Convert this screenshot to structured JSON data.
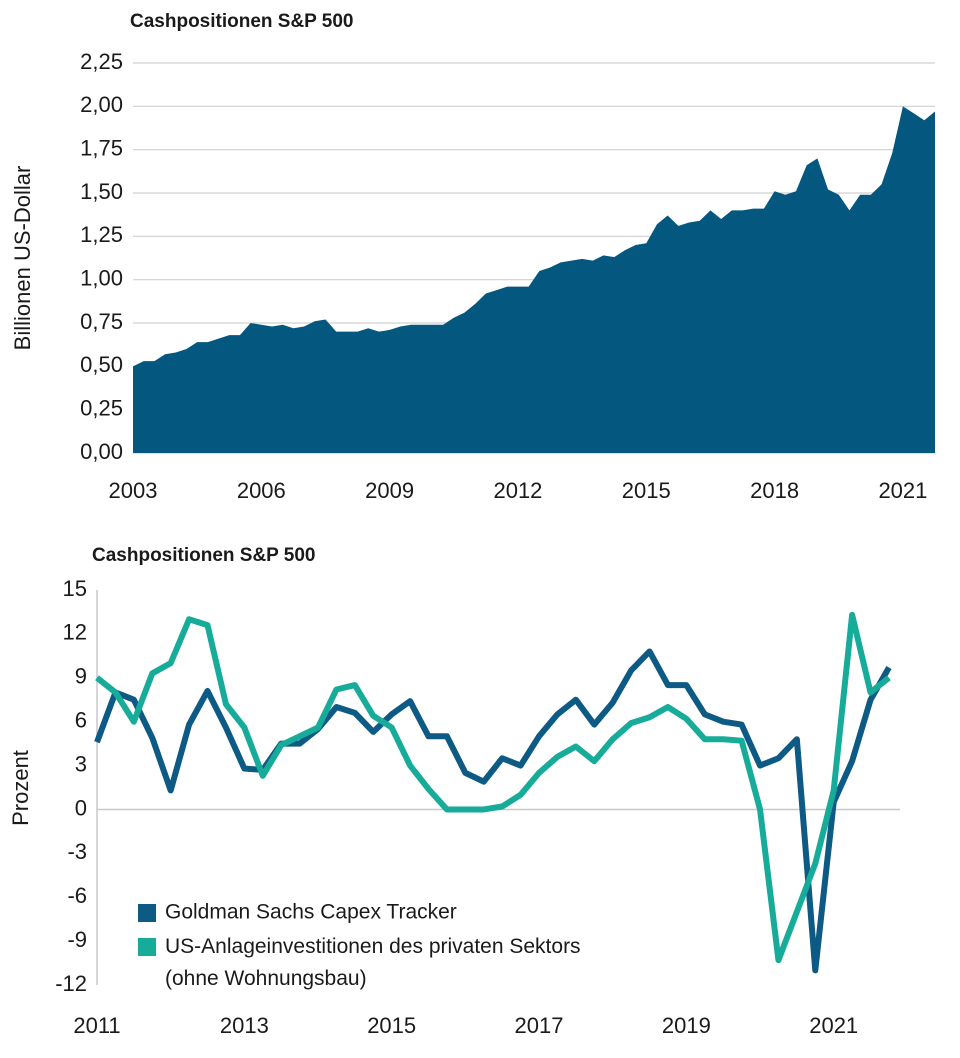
{
  "chart_data": [
    {
      "type": "area",
      "title": "Cashpositionen S&P 500",
      "y_label": "Billionen US-Dollar",
      "color": "#04587f",
      "grid": true,
      "x": [
        2003,
        2003.25,
        2003.5,
        2003.75,
        2004,
        2004.25,
        2004.5,
        2004.75,
        2005,
        2005.25,
        2005.5,
        2005.75,
        2006,
        2006.25,
        2006.5,
        2006.75,
        2007,
        2007.25,
        2007.5,
        2007.75,
        2008,
        2008.25,
        2008.5,
        2008.75,
        2009,
        2009.25,
        2009.5,
        2009.75,
        2010,
        2010.25,
        2010.5,
        2010.75,
        2011,
        2011.25,
        2011.5,
        2011.75,
        2012,
        2012.25,
        2012.5,
        2012.75,
        2013,
        2013.25,
        2013.5,
        2013.75,
        2014,
        2014.25,
        2014.5,
        2014.75,
        2015,
        2015.25,
        2015.5,
        2015.75,
        2016,
        2016.25,
        2016.5,
        2016.75,
        2017,
        2017.25,
        2017.5,
        2017.75,
        2018,
        2018.25,
        2018.5,
        2018.75,
        2019,
        2019.25,
        2019.5,
        2019.75,
        2020,
        2020.25,
        2020.5,
        2020.75,
        2021,
        2021.25,
        2021.5,
        2021.75
      ],
      "values": [
        0.5,
        0.53,
        0.53,
        0.57,
        0.58,
        0.6,
        0.64,
        0.64,
        0.66,
        0.68,
        0.68,
        0.75,
        0.74,
        0.73,
        0.74,
        0.72,
        0.73,
        0.76,
        0.77,
        0.7,
        0.7,
        0.7,
        0.72,
        0.7,
        0.71,
        0.73,
        0.74,
        0.74,
        0.74,
        0.74,
        0.78,
        0.81,
        0.86,
        0.92,
        0.94,
        0.96,
        0.96,
        0.96,
        1.05,
        1.07,
        1.1,
        1.11,
        1.12,
        1.11,
        1.14,
        1.13,
        1.17,
        1.2,
        1.21,
        1.32,
        1.37,
        1.31,
        1.33,
        1.34,
        1.4,
        1.35,
        1.4,
        1.4,
        1.41,
        1.41,
        1.51,
        1.49,
        1.51,
        1.66,
        1.7,
        1.52,
        1.49,
        1.4,
        1.49,
        1.49,
        1.55,
        1.73,
        2.0,
        1.96,
        1.92,
        1.97
      ],
      "xlim": [
        2003,
        2021.75
      ],
      "xticks": [
        2003,
        2006,
        2009,
        2012,
        2015,
        2018,
        2021
      ],
      "ylim": [
        0,
        2.25
      ],
      "yticks": [
        {
          "value": 0,
          "label": "0,00"
        },
        {
          "value": 0.25,
          "label": "0,25"
        },
        {
          "value": 0.5,
          "label": "0,50"
        },
        {
          "value": 0.75,
          "label": "0,75"
        },
        {
          "value": 1,
          "label": "1,00"
        },
        {
          "value": 1.25,
          "label": "1,25"
        },
        {
          "value": 1.5,
          "label": "1,50"
        },
        {
          "value": 1.75,
          "label": "1,75"
        },
        {
          "value": 2,
          "label": "2,00"
        },
        {
          "value": 2.25,
          "label": "2,25"
        }
      ]
    },
    {
      "type": "line",
      "title": "Cashpositionen S&P 500",
      "y_label": "Prozent",
      "grid": false,
      "legend": "lower left",
      "x": [
        2011,
        2011.25,
        2011.5,
        2011.75,
        2012,
        2012.25,
        2012.5,
        2012.75,
        2013,
        2013.25,
        2013.5,
        2013.75,
        2014,
        2014.25,
        2014.5,
        2014.75,
        2015,
        2015.25,
        2015.5,
        2015.75,
        2016,
        2016.25,
        2016.5,
        2016.75,
        2017,
        2017.25,
        2017.5,
        2017.75,
        2018,
        2018.25,
        2018.5,
        2018.75,
        2019,
        2019.25,
        2019.5,
        2019.75,
        2020,
        2020.25,
        2020.5,
        2020.75,
        2021,
        2021.25,
        2021.5,
        2021.75
      ],
      "series": [
        {
          "name": "Goldman Sachs Capex Tracker",
          "color": "#0d5a85",
          "values": [
            4.6,
            8.0,
            7.5,
            4.9,
            1.3,
            5.8,
            8.1,
            5.6,
            2.8,
            2.7,
            4.5,
            4.5,
            5.5,
            7.0,
            6.6,
            5.3,
            6.5,
            7.4,
            5.0,
            5.0,
            2.5,
            1.9,
            3.5,
            3.0,
            5.0,
            6.5,
            7.5,
            5.8,
            7.3,
            9.5,
            10.8,
            8.5,
            8.5,
            6.5,
            6.0,
            5.8,
            3.0,
            3.5,
            4.8,
            -11.0,
            0.5,
            3.3,
            7.5,
            9.7
          ]
        },
        {
          "name": "US-Anlageinvestitionen des privaten Sektors (ohne Wohnungsbau)",
          "color": "#17ab9a",
          "values": [
            9.0,
            8.0,
            6.0,
            9.3,
            10.0,
            13.0,
            12.6,
            7.2,
            5.6,
            2.3,
            4.4,
            5.0,
            5.6,
            8.2,
            8.5,
            6.4,
            5.6,
            3.0,
            1.4,
            0.0,
            0.0,
            0.0,
            0.2,
            1.0,
            2.5,
            3.6,
            4.3,
            3.3,
            4.8,
            5.9,
            6.3,
            7.0,
            6.2,
            4.8,
            4.8,
            4.7,
            0.0,
            -10.3,
            -7.0,
            -3.7,
            1.3,
            13.3,
            8.0,
            9.0
          ]
        }
      ],
      "xlim": [
        2011,
        2021.9
      ],
      "xticks": [
        2011,
        2013,
        2015,
        2017,
        2019,
        2021
      ],
      "ylim": [
        -12,
        15
      ],
      "yticks": [
        -12,
        -9,
        -6,
        -3,
        0,
        3,
        6,
        9,
        12,
        15
      ]
    }
  ]
}
